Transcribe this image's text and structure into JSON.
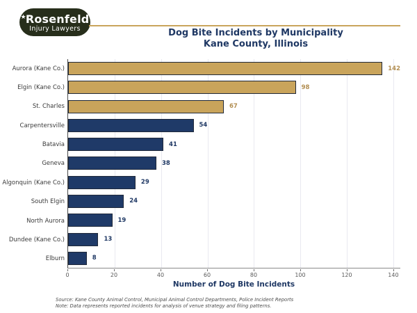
{
  "branding": {
    "star_glyph": "★",
    "logo_line1": "Rosenfeld",
    "logo_line2": "Injury Lawyers",
    "logo_bg_color": "#272e1b"
  },
  "header": {
    "title_line1": "Dog Bite Incidents by Municipality",
    "title_line2": "Kane County, Illinois"
  },
  "chart_data": {
    "type": "bar",
    "orientation": "horizontal",
    "title": "Dog Bite Incidents by Municipality",
    "subtitle": "Kane County, Illinois",
    "xlabel": "Number of Dog Bite Incidents",
    "ylabel": "",
    "categories": [
      "Aurora (Kane Co.)",
      "Elgin (Kane Co.)",
      "St. Charles",
      "Carpentersville",
      "Batavia",
      "Geneva",
      "Algonquin (Kane Co.)",
      "South Elgin",
      "North Aurora",
      "Dundee (Kane Co.)",
      "Elburn"
    ],
    "values": [
      142,
      98,
      67,
      54,
      41,
      38,
      29,
      24,
      19,
      13,
      8
    ],
    "xticks": [
      0,
      20,
      40,
      60,
      80,
      100,
      120,
      140
    ],
    "xlim": [
      0,
      143
    ],
    "grid": true,
    "legend": "none",
    "bar_style": {
      "highlight_count": 3,
      "highlight_fill": "#C9A45B",
      "highlight_value_color": "#B28E52",
      "default_fill": "#1F3A68",
      "default_value_color": "#1F3864",
      "bar_border": "#20293a",
      "gridline_color": "#e9e9f0"
    }
  },
  "footer": {
    "source_line1": "Source: Kane County Animal Control, Municipal Animal Control Departments, Police Incident Reports",
    "source_line2": "Note: Data represents reported incidents for analysis of venue strategy and filing patterns."
  }
}
